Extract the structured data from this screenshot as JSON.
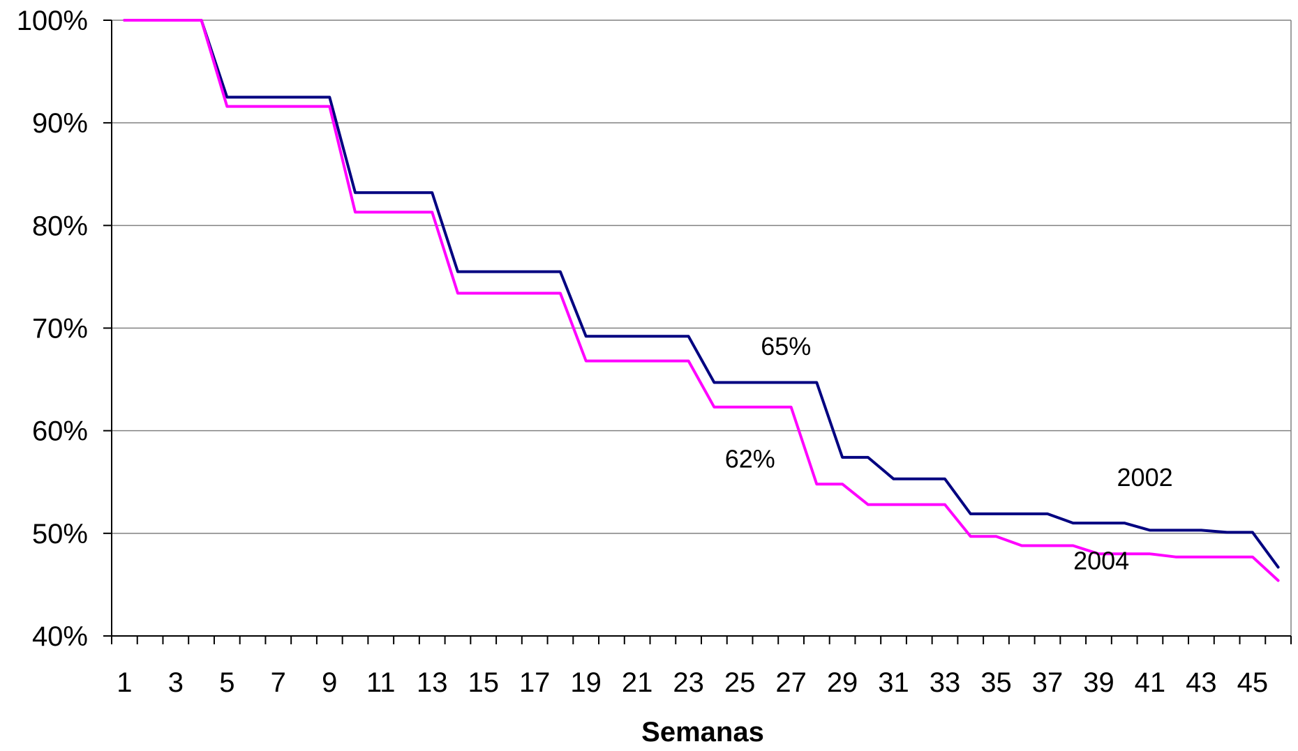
{
  "chart_data": {
    "type": "line",
    "title": "",
    "xlabel": "Semanas",
    "ylabel": "",
    "ylim": [
      40,
      100
    ],
    "y_ticks": [
      "40%",
      "50%",
      "60%",
      "70%",
      "80%",
      "90%",
      "100%"
    ],
    "y_tick_values": [
      40,
      50,
      60,
      70,
      80,
      90,
      100
    ],
    "x": [
      1,
      2,
      3,
      4,
      5,
      6,
      7,
      8,
      9,
      10,
      11,
      12,
      13,
      14,
      15,
      16,
      17,
      18,
      19,
      20,
      21,
      22,
      23,
      24,
      25,
      26,
      27,
      28,
      29,
      30,
      31,
      32,
      33,
      34,
      35,
      36,
      37,
      38,
      39,
      40,
      41,
      42,
      43,
      44,
      45,
      46
    ],
    "x_tick_labels": [
      "1",
      "3",
      "5",
      "7",
      "9",
      "11",
      "13",
      "15",
      "17",
      "19",
      "21",
      "23",
      "25",
      "27",
      "29",
      "31",
      "33",
      "35",
      "37",
      "39",
      "41",
      "43",
      "45"
    ],
    "grid": true,
    "legend": "none",
    "series": [
      {
        "name": "2002",
        "color": "#000080",
        "values": [
          100,
          100,
          100,
          100,
          92.5,
          92.5,
          92.5,
          92.5,
          92.5,
          83.2,
          83.2,
          83.2,
          83.2,
          75.5,
          75.5,
          75.5,
          75.5,
          75.5,
          69.2,
          69.2,
          69.2,
          69.2,
          69.2,
          64.7,
          64.7,
          64.7,
          64.7,
          64.7,
          57.4,
          57.4,
          55.3,
          55.3,
          55.3,
          51.9,
          51.9,
          51.9,
          51.9,
          51.0,
          51.0,
          51.0,
          50.3,
          50.3,
          50.3,
          50.1,
          50.1,
          46.7
        ]
      },
      {
        "name": "2004",
        "color": "#FF00FF",
        "values": [
          100,
          100,
          100,
          100,
          91.6,
          91.6,
          91.6,
          91.6,
          91.6,
          81.3,
          81.3,
          81.3,
          81.3,
          73.4,
          73.4,
          73.4,
          73.4,
          73.4,
          66.8,
          66.8,
          66.8,
          66.8,
          66.8,
          62.3,
          62.3,
          62.3,
          62.3,
          54.8,
          54.8,
          52.8,
          52.8,
          52.8,
          52.8,
          49.7,
          49.7,
          48.8,
          48.8,
          48.8,
          48.0,
          48.0,
          48.0,
          47.7,
          47.7,
          47.7,
          47.7,
          45.4
        ]
      }
    ],
    "annotations": [
      {
        "text": "65%",
        "x": 26.8,
        "y": 67.4,
        "color": "#000000"
      },
      {
        "text": "62%",
        "x": 25.4,
        "y": 56.4,
        "color": "#000000"
      },
      {
        "text": "2002",
        "x": 40.8,
        "y": 54.6,
        "color": "#000000"
      },
      {
        "text": "2004",
        "x": 39.1,
        "y": 46.5,
        "color": "#000000"
      }
    ]
  }
}
